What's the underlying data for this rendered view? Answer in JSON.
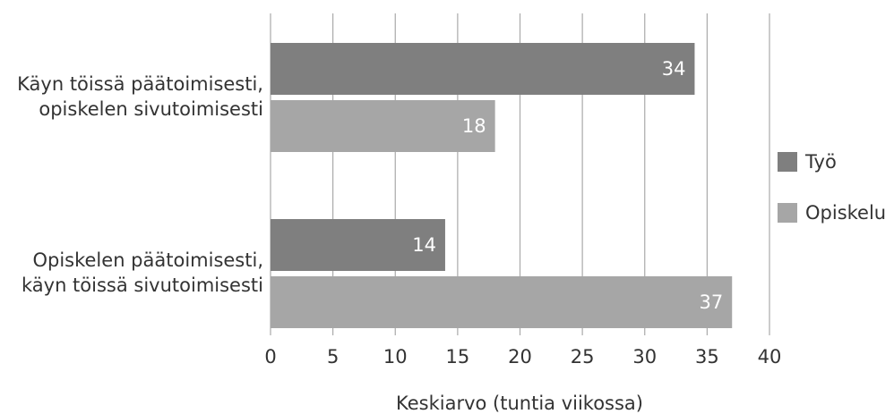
{
  "chart_data": {
    "type": "bar",
    "orientation": "horizontal",
    "categories": [
      "Käyn töissä päätoimisesti,\nopiskelen sivutoimisesti",
      "Opiskelen päätoimisesti,\nkäyn töissä sivutoimisesti"
    ],
    "series": [
      {
        "name": "Työ",
        "color": "#7f7f7f",
        "values": [
          34,
          14
        ]
      },
      {
        "name": "Opiskelu",
        "color": "#a6a6a6",
        "values": [
          18,
          37
        ]
      }
    ],
    "xlabel": "Keskiarvo (tuntia viikossa)",
    "xlim": [
      0,
      40
    ],
    "xticks": [
      0,
      5,
      10,
      15,
      20,
      25,
      30,
      35,
      40
    ],
    "grid": true,
    "legend": "right"
  }
}
